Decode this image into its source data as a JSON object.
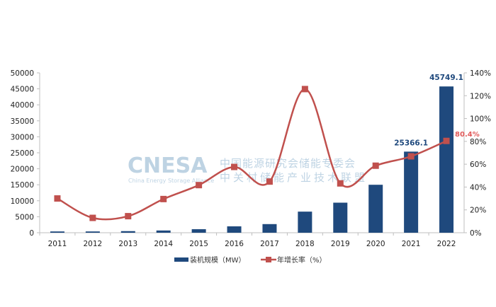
{
  "chart_data": {
    "type": "bar+line",
    "categories": [
      "2011",
      "2012",
      "2013",
      "2014",
      "2015",
      "2016",
      "2017",
      "2018",
      "2019",
      "2020",
      "2021",
      "2022"
    ],
    "series": [
      {
        "name": "装机规模（MW）",
        "type": "bar",
        "axis": "left",
        "color": "#1f497d",
        "values": [
          400,
          400,
          500,
          700,
          1100,
          2000,
          2700,
          6600,
          9400,
          15000,
          25366.1,
          45749.1
        ]
      },
      {
        "name": "年增长率（%）",
        "type": "line",
        "axis": "right",
        "color": "#c0504d",
        "values": [
          30,
          13,
          14.5,
          29.5,
          41.7,
          57.6,
          44.8,
          125.8,
          43.2,
          58.7,
          66.9,
          80.4
        ]
      }
    ],
    "data_labels": [
      {
        "category": "2021",
        "series": 0,
        "text": "25366.1",
        "color": "#1f497d"
      },
      {
        "category": "2022",
        "series": 0,
        "text": "45749.1",
        "color": "#1f497d"
      },
      {
        "category": "2022",
        "series": 1,
        "text": "80.4%",
        "color": "#e05a5a"
      }
    ],
    "y_left": {
      "lim": [
        0,
        50000
      ],
      "ticks": [
        "0",
        "5000",
        "10000",
        "15000",
        "20000",
        "25000",
        "30000",
        "35000",
        "40000",
        "45000",
        "50000"
      ]
    },
    "y_right": {
      "lim": [
        0,
        140
      ],
      "ticks": [
        "0%",
        "20%",
        "40%",
        "60%",
        "80%",
        "100%",
        "120%",
        "140%"
      ]
    },
    "grid": false,
    "legend": "bottom"
  },
  "watermark": {
    "logo": "CNESA",
    "subtitle": "China Energy Storage Alliance",
    "line1": "中国能源研究会储能专委会",
    "line2": "中关村储能产业技术联盟"
  }
}
